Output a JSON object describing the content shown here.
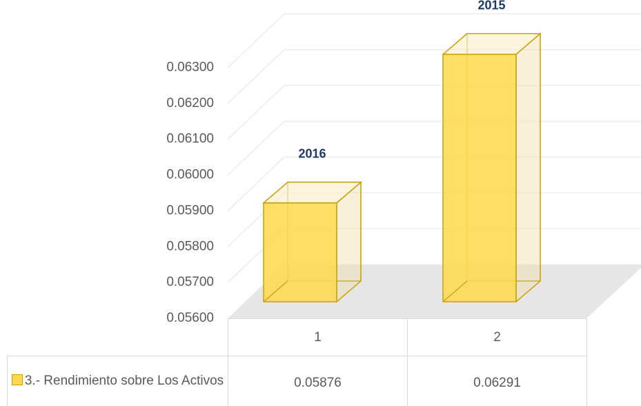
{
  "chart_data": {
    "type": "bar3d",
    "categories": [
      "1",
      "2"
    ],
    "series": [
      {
        "name": "3.- Rendimiento sobre Los Activos",
        "color": "#ffd84d",
        "values": [
          0.05876,
          0.06291
        ]
      }
    ],
    "bar_labels": [
      "2016",
      "2015"
    ],
    "ylim": [
      0.056,
      0.063
    ],
    "yticks": [
      {
        "value": 0.056,
        "label": "0.05600"
      },
      {
        "value": 0.057,
        "label": "0.05700"
      },
      {
        "value": 0.058,
        "label": "0.05800"
      },
      {
        "value": 0.059,
        "label": "0.05900"
      },
      {
        "value": 0.06,
        "label": "0.06000"
      },
      {
        "value": 0.061,
        "label": "0.06100"
      },
      {
        "value": 0.062,
        "label": "0.06200"
      },
      {
        "value": 0.063,
        "label": "0.06300"
      }
    ],
    "grid": true,
    "data_table": true
  }
}
